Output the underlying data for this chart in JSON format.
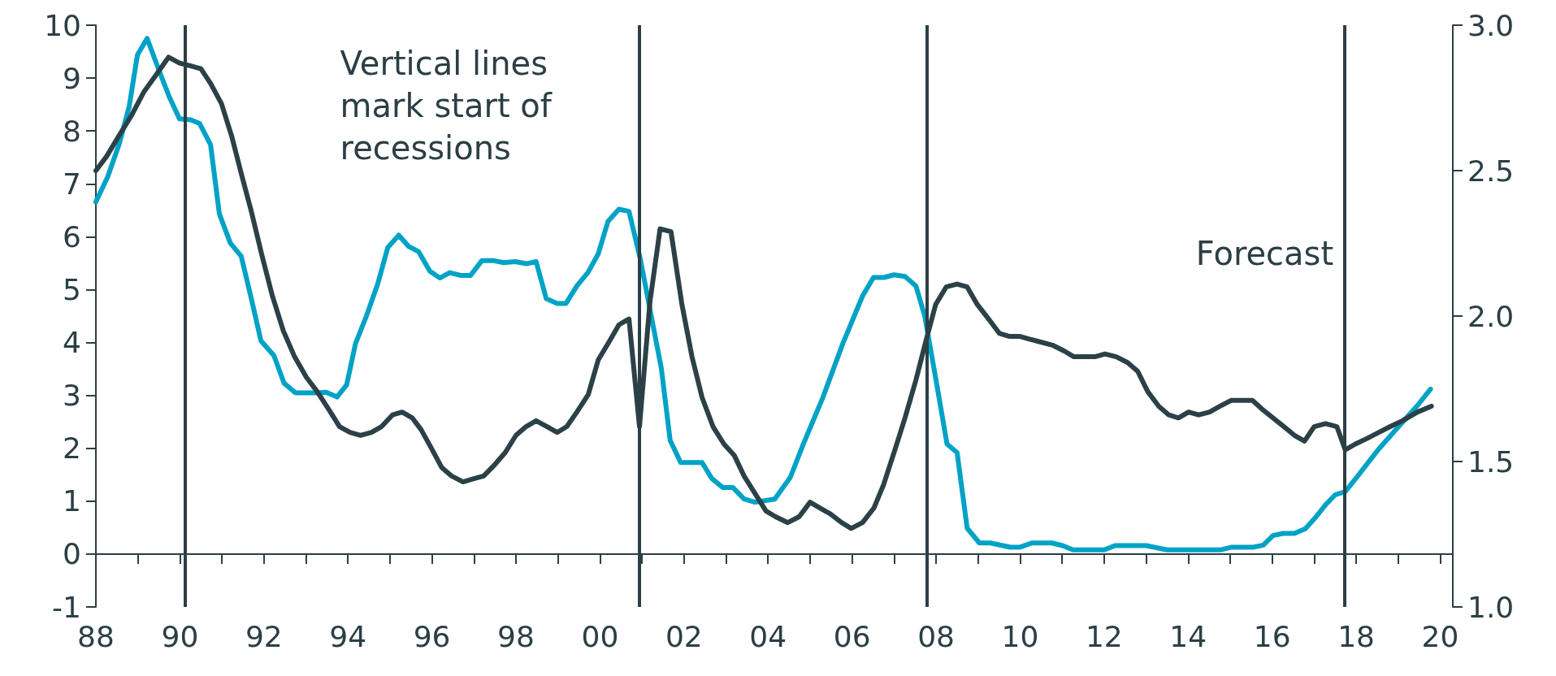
{
  "chart_data": {
    "type": "line",
    "annotations": [
      "Vertical lines mark start of recessions"
    ],
    "xlim": [
      1988,
      2020.3
    ],
    "xticks": [
      {
        "value": 1988,
        "label": "88"
      },
      {
        "value": 1989,
        "label": null
      },
      {
        "value": 1990,
        "label": "90"
      },
      {
        "value": 1991,
        "label": null
      },
      {
        "value": 1992,
        "label": "92"
      },
      {
        "value": 1993,
        "label": null
      },
      {
        "value": 1994,
        "label": "94"
      },
      {
        "value": 1995,
        "label": null
      },
      {
        "value": 1996,
        "label": "96"
      },
      {
        "value": 1997,
        "label": null
      },
      {
        "value": 1998,
        "label": "98"
      },
      {
        "value": 1999,
        "label": null
      },
      {
        "value": 2000,
        "label": "00"
      },
      {
        "value": 2001,
        "label": null
      },
      {
        "value": 2002,
        "label": "02"
      },
      {
        "value": 2003,
        "label": null
      },
      {
        "value": 2004,
        "label": "04"
      },
      {
        "value": 2005,
        "label": null
      },
      {
        "value": 2006,
        "label": "06"
      },
      {
        "value": 2007,
        "label": null
      },
      {
        "value": 2008,
        "label": "08"
      },
      {
        "value": 2009,
        "label": null
      },
      {
        "value": 2010,
        "label": "10"
      },
      {
        "value": 2011,
        "label": null
      },
      {
        "value": 2012,
        "label": "12"
      },
      {
        "value": 2013,
        "label": null
      },
      {
        "value": 2014,
        "label": "14"
      },
      {
        "value": 2015,
        "label": null
      },
      {
        "value": 2016,
        "label": "16"
      },
      {
        "value": 2017,
        "label": null
      },
      {
        "value": 2018,
        "label": "18"
      },
      {
        "value": 2019,
        "label": null
      },
      {
        "value": 2020,
        "label": "20"
      }
    ],
    "ylim": [
      -1,
      10
    ],
    "yticks": [
      -1,
      0,
      1,
      2,
      3,
      4,
      5,
      6,
      7,
      8,
      9,
      10
    ],
    "y2lim": [
      1,
      3
    ],
    "y2ticks": [
      {
        "value": 1,
        "label": "1.0"
      },
      {
        "value": 1.5,
        "label": "1.5"
      },
      {
        "value": 2,
        "label": "2.0"
      },
      {
        "value": 2.5,
        "label": "2.5"
      },
      {
        "value": 3,
        "label": "3.0"
      }
    ],
    "grid": false,
    "marker": "none",
    "line_style": "solid",
    "ref_lines": [
      {
        "axis": "x",
        "value": 1990.12,
        "color": "#2b3f45"
      },
      {
        "axis": "x",
        "value": 2000.93,
        "color": "#2b3f45"
      },
      {
        "axis": "x",
        "value": 2007.79,
        "color": "#2b3f45"
      },
      {
        "axis": "x",
        "value": 2017.73,
        "label": "Forecast",
        "color": "#2b3f45"
      }
    ],
    "series": [
      {
        "color": "#00a2c6",
        "x": [
          1988.0,
          1988.28,
          1988.55,
          1988.79,
          1988.99,
          1989.22,
          1989.5,
          1989.75,
          1989.99,
          1990.26,
          1990.47,
          1990.73,
          1990.94,
          1991.2,
          1991.46,
          1991.7,
          1991.93,
          1992.24,
          1992.48,
          1992.75,
          1993.27,
          1993.48,
          1993.74,
          1993.97,
          1994.18,
          1994.44,
          1994.71,
          1994.95,
          1995.21,
          1995.44,
          1995.68,
          1995.95,
          1996.19,
          1996.42,
          1996.68,
          1996.92,
          1997.19,
          1997.45,
          1997.71,
          1997.98,
          1998.25,
          1998.48,
          1998.72,
          1998.98,
          1999.19,
          1999.45,
          1999.71,
          1999.96,
          2000.19,
          2000.45,
          2000.69,
          2000.96,
          2001.22,
          2001.46,
          2001.67,
          2001.92,
          2002.43,
          2002.66,
          2002.92,
          2003.16,
          2003.43,
          2003.69,
          2004.16,
          2004.53,
          2004.83,
          2005.3,
          2005.78,
          2006.25,
          2006.51,
          2006.76,
          2007.0,
          2007.26,
          2007.52,
          2007.73,
          2007.99,
          2008.26,
          2008.5,
          2008.74,
          2009.03,
          2009.29,
          2009.77,
          2010.0,
          2010.28,
          2010.75,
          2011.01,
          2011.26,
          2012.0,
          2012.26,
          2013.0,
          2013.5,
          2014.78,
          2015.04,
          2015.55,
          2015.79,
          2016.02,
          2016.26,
          2016.53,
          2016.79,
          2017.03,
          2017.27,
          2017.5,
          2017.74,
          2018.01,
          2018.51,
          2019.01,
          2019.46,
          2019.77
        ],
        "values": [
          6.66,
          7.13,
          7.74,
          8.45,
          9.44,
          9.75,
          9.15,
          8.64,
          8.23,
          8.21,
          8.14,
          7.74,
          6.43,
          5.88,
          5.63,
          4.83,
          4.03,
          3.75,
          3.23,
          3.05,
          3.05,
          3.06,
          2.97,
          3.2,
          3.98,
          4.5,
          5.11,
          5.8,
          6.03,
          5.82,
          5.72,
          5.35,
          5.22,
          5.32,
          5.27,
          5.27,
          5.55,
          5.55,
          5.51,
          5.53,
          5.49,
          5.53,
          4.83,
          4.74,
          4.74,
          5.07,
          5.32,
          5.68,
          6.29,
          6.52,
          6.48,
          5.58,
          4.5,
          3.51,
          2.15,
          1.73,
          1.73,
          1.43,
          1.26,
          1.26,
          1.04,
          0.98,
          1.04,
          1.45,
          2.06,
          2.95,
          3.98,
          4.88,
          5.23,
          5.23,
          5.28,
          5.25,
          5.07,
          4.5,
          3.33,
          2.08,
          1.92,
          0.49,
          0.21,
          0.21,
          0.13,
          0.13,
          0.21,
          0.21,
          0.16,
          0.08,
          0.08,
          0.16,
          0.16,
          0.08,
          0.08,
          0.13,
          0.13,
          0.17,
          0.35,
          0.39,
          0.39,
          0.48,
          0.69,
          0.93,
          1.12,
          1.18,
          1.45,
          1.96,
          2.41,
          2.81,
          3.12
        ]
      },
      {
        "color": "#2b4147",
        "axis": "y2",
        "x": [
          1988.0,
          1988.26,
          1988.55,
          1988.85,
          1989.14,
          1989.44,
          1989.73,
          1989.99,
          1990.26,
          1990.5,
          1990.73,
          1990.99,
          1991.23,
          1991.46,
          1991.7,
          1991.95,
          1992.2,
          1992.46,
          1992.73,
          1993.01,
          1993.27,
          1993.54,
          1993.8,
          1994.05,
          1994.3,
          1994.56,
          1994.8,
          1995.06,
          1995.29,
          1995.53,
          1995.74,
          1995.97,
          1996.23,
          1996.47,
          1996.74,
          1996.98,
          1997.23,
          1997.5,
          1997.74,
          1998.0,
          1998.24,
          1998.48,
          1998.74,
          1998.98,
          1999.21,
          1999.45,
          1999.72,
          1999.96,
          2000.21,
          2000.45,
          2000.69,
          2000.94,
          2001.19,
          2001.43,
          2001.69,
          2001.95,
          2002.19,
          2002.43,
          2002.69,
          2002.95,
          2003.2,
          2003.43,
          2003.69,
          2003.95,
          2004.18,
          2004.47,
          2004.74,
          2005.0,
          2005.24,
          2005.48,
          2005.75,
          2005.98,
          2006.25,
          2006.52,
          2006.75,
          2007.02,
          2007.26,
          2007.52,
          2007.75,
          2007.99,
          2008.24,
          2008.5,
          2008.74,
          2008.98,
          2009.25,
          2009.51,
          2009.75,
          2010.0,
          2010.24,
          2010.51,
          2010.77,
          2011.05,
          2011.28,
          2011.52,
          2011.78,
          2012.02,
          2012.29,
          2012.56,
          2012.8,
          2013.04,
          2013.3,
          2013.54,
          2013.77,
          2014.01,
          2014.25,
          2014.51,
          2014.76,
          2015.02,
          2015.28,
          2015.53,
          2015.76,
          2016.02,
          2016.28,
          2016.53,
          2016.77,
          2017.0,
          2017.27,
          2017.54,
          2017.74,
          2017.98,
          2018.27,
          2018.54,
          2018.81,
          2019.1,
          2019.46,
          2019.79
        ],
        "values": [
          2.5,
          2.55,
          2.62,
          2.69,
          2.77,
          2.83,
          2.89,
          2.87,
          2.86,
          2.85,
          2.8,
          2.73,
          2.62,
          2.49,
          2.36,
          2.21,
          2.07,
          1.95,
          1.86,
          1.79,
          1.74,
          1.68,
          1.62,
          1.6,
          1.59,
          1.6,
          1.62,
          1.66,
          1.67,
          1.65,
          1.61,
          1.55,
          1.48,
          1.45,
          1.43,
          1.44,
          1.45,
          1.49,
          1.53,
          1.59,
          1.62,
          1.64,
          1.62,
          1.6,
          1.62,
          1.67,
          1.73,
          1.85,
          1.91,
          1.97,
          1.99,
          1.62,
          2.05,
          2.3,
          2.29,
          2.04,
          1.86,
          1.72,
          1.62,
          1.56,
          1.52,
          1.45,
          1.39,
          1.33,
          1.31,
          1.29,
          1.31,
          1.36,
          1.34,
          1.32,
          1.29,
          1.27,
          1.29,
          1.34,
          1.42,
          1.54,
          1.65,
          1.78,
          1.91,
          2.04,
          2.1,
          2.11,
          2.1,
          2.04,
          1.99,
          1.94,
          1.93,
          1.93,
          1.92,
          1.91,
          1.9,
          1.88,
          1.86,
          1.86,
          1.86,
          1.87,
          1.86,
          1.84,
          1.81,
          1.74,
          1.69,
          1.66,
          1.65,
          1.67,
          1.66,
          1.67,
          1.69,
          1.71,
          1.71,
          1.71,
          1.68,
          1.65,
          1.62,
          1.59,
          1.57,
          1.62,
          1.63,
          1.62,
          1.54,
          1.56,
          1.58,
          1.6,
          1.62,
          1.64,
          1.67,
          1.69
        ]
      }
    ]
  }
}
